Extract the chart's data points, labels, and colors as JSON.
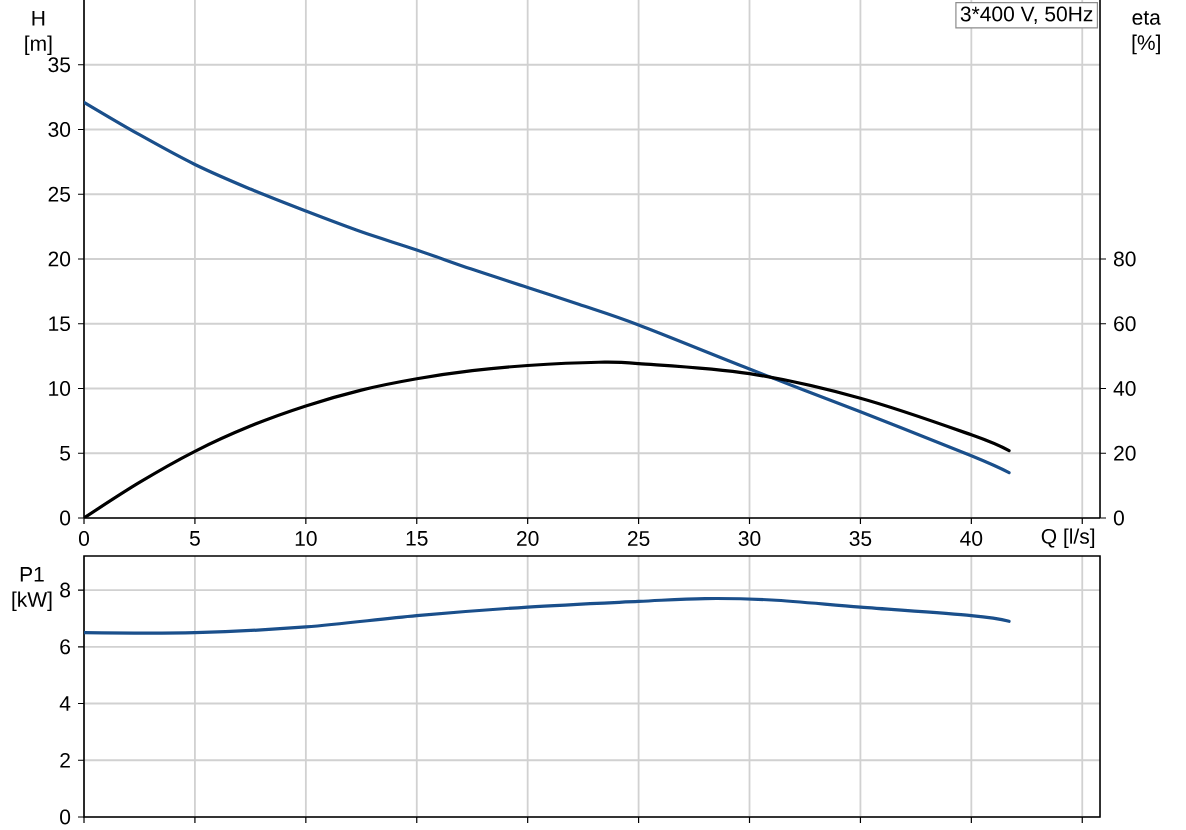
{
  "chart_data": [
    {
      "type": "line",
      "xlabel": "Q [l/s]",
      "ylabel": "H [m]",
      "y2label": "eta [%]",
      "annotations": [
        "3*400 V, 50Hz"
      ],
      "xlim": [
        0,
        45.8
      ],
      "xticks": [
        0,
        5,
        10,
        15,
        20,
        25,
        30,
        35,
        40,
        {
          "value": 45,
          "label": null
        }
      ],
      "ylim": [
        0,
        40
      ],
      "yticks": [
        0,
        5,
        10,
        15,
        20,
        25,
        30,
        35
      ],
      "y2lim": [
        0,
        160
      ],
      "y2ticks": [
        0,
        20,
        40,
        60,
        80
      ],
      "grid": true,
      "series": [
        {
          "color": "#1a4f8b",
          "x": [
            0,
            2.5,
            5,
            7.5,
            10,
            12.5,
            15,
            17.5,
            20,
            22.3,
            25,
            30,
            35,
            40,
            41.7
          ],
          "values": [
            32.1,
            29.6,
            27.3,
            25.4,
            23.7,
            22.1,
            20.7,
            19.2,
            17.8,
            16.5,
            14.9,
            11.5,
            8.2,
            4.8,
            3.5
          ]
        },
        {
          "color": "#000000",
          "axis": "y2",
          "x": [
            0,
            2.5,
            5,
            7.5,
            10,
            12.5,
            15,
            17.5,
            20,
            23.2,
            25,
            30,
            35,
            40,
            41.7
          ],
          "values": [
            0,
            11.0,
            20.6,
            28.4,
            34.6,
            39.5,
            43.0,
            45.5,
            47.1,
            48.1,
            47.7,
            44.6,
            37.0,
            25.7,
            20.8
          ]
        }
      ]
    },
    {
      "type": "line",
      "ylabel": "P1 [kW]",
      "xlim": [
        0,
        45.8
      ],
      "xticks": [
        0,
        5,
        10,
        15,
        20,
        25,
        30,
        35,
        40,
        45
      ],
      "ylim": [
        0,
        9.2
      ],
      "yticks": [
        0,
        2,
        4,
        6,
        8
      ],
      "grid": true,
      "tick_labels": "y",
      "series": [
        {
          "color": "#1a4f8b",
          "x": [
            0,
            5,
            10,
            15,
            20,
            25,
            28,
            31,
            35,
            40,
            41.7
          ],
          "values": [
            6.5,
            6.5,
            6.7,
            7.1,
            7.4,
            7.6,
            7.7,
            7.65,
            7.4,
            7.1,
            6.9
          ]
        }
      ]
    }
  ]
}
